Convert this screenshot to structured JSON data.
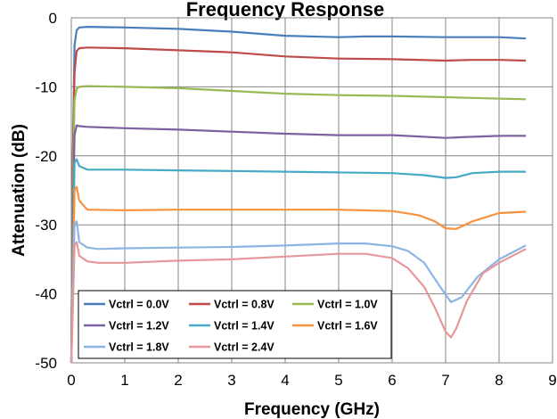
{
  "chart_data": {
    "type": "line",
    "title": "Frequency Response",
    "xlabel": "Frequency  (GHz)",
    "ylabel": "Attenuation  (dB)",
    "xlim": [
      0,
      9
    ],
    "ylim": [
      -50,
      0
    ],
    "xticks": [
      "0",
      "1",
      "2",
      "3",
      "4",
      "5",
      "6",
      "7",
      "8",
      "9"
    ],
    "yticks": [
      "0",
      "-10",
      "-20",
      "-30",
      "-40",
      "-50"
    ],
    "grid": true,
    "legend": "bottom-left",
    "series": [
      {
        "name": "Vctrl = 0.0V",
        "color": "#4a7ebb",
        "x": [
          0.0,
          0.03,
          0.06,
          0.1,
          0.15,
          0.3,
          1,
          2,
          3,
          4,
          5,
          5.5,
          6,
          7,
          7.5,
          8,
          8.5
        ],
        "y": [
          -50,
          -20,
          -4,
          -1.8,
          -1.4,
          -1.3,
          -1.4,
          -1.6,
          -2.0,
          -2.6,
          -2.8,
          -2.7,
          -2.7,
          -2.8,
          -2.8,
          -2.8,
          -3.0
        ]
      },
      {
        "name": "Vctrl = 0.8V",
        "color": "#be4b48",
        "x": [
          0.0,
          0.03,
          0.06,
          0.1,
          0.15,
          0.3,
          1,
          2,
          3,
          4,
          5,
          6,
          7,
          7.5,
          8,
          8.5
        ],
        "y": [
          -50,
          -20,
          -8,
          -4.8,
          -4.4,
          -4.3,
          -4.4,
          -4.7,
          -5.0,
          -5.6,
          -5.9,
          -6.0,
          -6.2,
          -6.1,
          -6.1,
          -6.2
        ]
      },
      {
        "name": "Vctrl = 1.0V",
        "color": "#98b954",
        "x": [
          0.0,
          0.03,
          0.06,
          0.1,
          0.15,
          0.3,
          1,
          2,
          3,
          4,
          5,
          6,
          7,
          7.5,
          8,
          8.5
        ],
        "y": [
          -50,
          -25,
          -12,
          -10.3,
          -10.0,
          -9.9,
          -10.0,
          -10.2,
          -10.6,
          -11.0,
          -11.2,
          -11.3,
          -11.5,
          -11.6,
          -11.7,
          -11.8
        ]
      },
      {
        "name": "Vctrl = 1.2V",
        "color": "#7d60a0",
        "x": [
          0.0,
          0.03,
          0.06,
          0.1,
          0.15,
          0.3,
          1,
          2,
          3,
          4,
          5,
          6,
          6.5,
          7,
          7.3,
          8,
          8.5
        ],
        "y": [
          -50,
          -30,
          -17,
          -15.6,
          -15.7,
          -15.8,
          -16.0,
          -16.2,
          -16.5,
          -16.8,
          -17.0,
          -17.0,
          -17.2,
          -17.4,
          -17.3,
          -17.1,
          -17.1
        ]
      },
      {
        "name": "Vctrl = 1.4V",
        "color": "#46aac5",
        "x": [
          0.0,
          0.03,
          0.06,
          0.1,
          0.15,
          0.3,
          1,
          2,
          3,
          4,
          5,
          6,
          6.6,
          7,
          7.2,
          7.5,
          8,
          8.5
        ],
        "y": [
          -50,
          -35,
          -21,
          -20.5,
          -21.5,
          -22.0,
          -22.0,
          -22.1,
          -22.2,
          -22.3,
          -22.4,
          -22.5,
          -22.8,
          -23.2,
          -23.1,
          -22.5,
          -22.3,
          -22.3
        ]
      },
      {
        "name": "Vctrl = 1.6V",
        "color": "#f69240",
        "x": [
          0.0,
          0.03,
          0.06,
          0.1,
          0.15,
          0.3,
          1,
          2,
          3,
          4,
          5,
          6,
          6.5,
          6.8,
          7,
          7.2,
          7.5,
          8,
          8.5
        ],
        "y": [
          -50,
          -38,
          -25,
          -24.5,
          -26.5,
          -27.8,
          -27.9,
          -27.8,
          -27.8,
          -27.8,
          -27.8,
          -28.0,
          -28.6,
          -29.5,
          -30.5,
          -30.6,
          -29.5,
          -28.3,
          -28.1
        ]
      },
      {
        "name": "Vctrl = 1.8V",
        "color": "#8eb4e3",
        "x": [
          0.0,
          0.03,
          0.06,
          0.1,
          0.15,
          0.3,
          0.5,
          1,
          2,
          3,
          4,
          5,
          5.5,
          6,
          6.3,
          6.6,
          6.9,
          7.1,
          7.3,
          7.6,
          8,
          8.5
        ],
        "y": [
          -50,
          -40,
          -30,
          -29.5,
          -32.5,
          -33.3,
          -33.5,
          -33.4,
          -33.3,
          -33.2,
          -33.0,
          -32.7,
          -32.7,
          -33.1,
          -33.8,
          -35.5,
          -39,
          -41.2,
          -40.5,
          -37.5,
          -35,
          -33
        ]
      },
      {
        "name": "Vctrl = 2.4V",
        "color": "#e6989a",
        "x": [
          0.0,
          0.03,
          0.06,
          0.1,
          0.15,
          0.3,
          0.5,
          1,
          2,
          3,
          4,
          5,
          5.5,
          6,
          6.3,
          6.6,
          6.8,
          7.0,
          7.1,
          7.2,
          7.4,
          7.7,
          8,
          8.5
        ],
        "y": [
          -50,
          -42,
          -33,
          -32.5,
          -34.5,
          -35.3,
          -35.5,
          -35.5,
          -35.2,
          -35.0,
          -34.6,
          -34.2,
          -34.2,
          -34.8,
          -36.3,
          -39,
          -42,
          -45.5,
          -46.3,
          -45,
          -41,
          -37,
          -35.5,
          -33.5
        ]
      }
    ]
  }
}
